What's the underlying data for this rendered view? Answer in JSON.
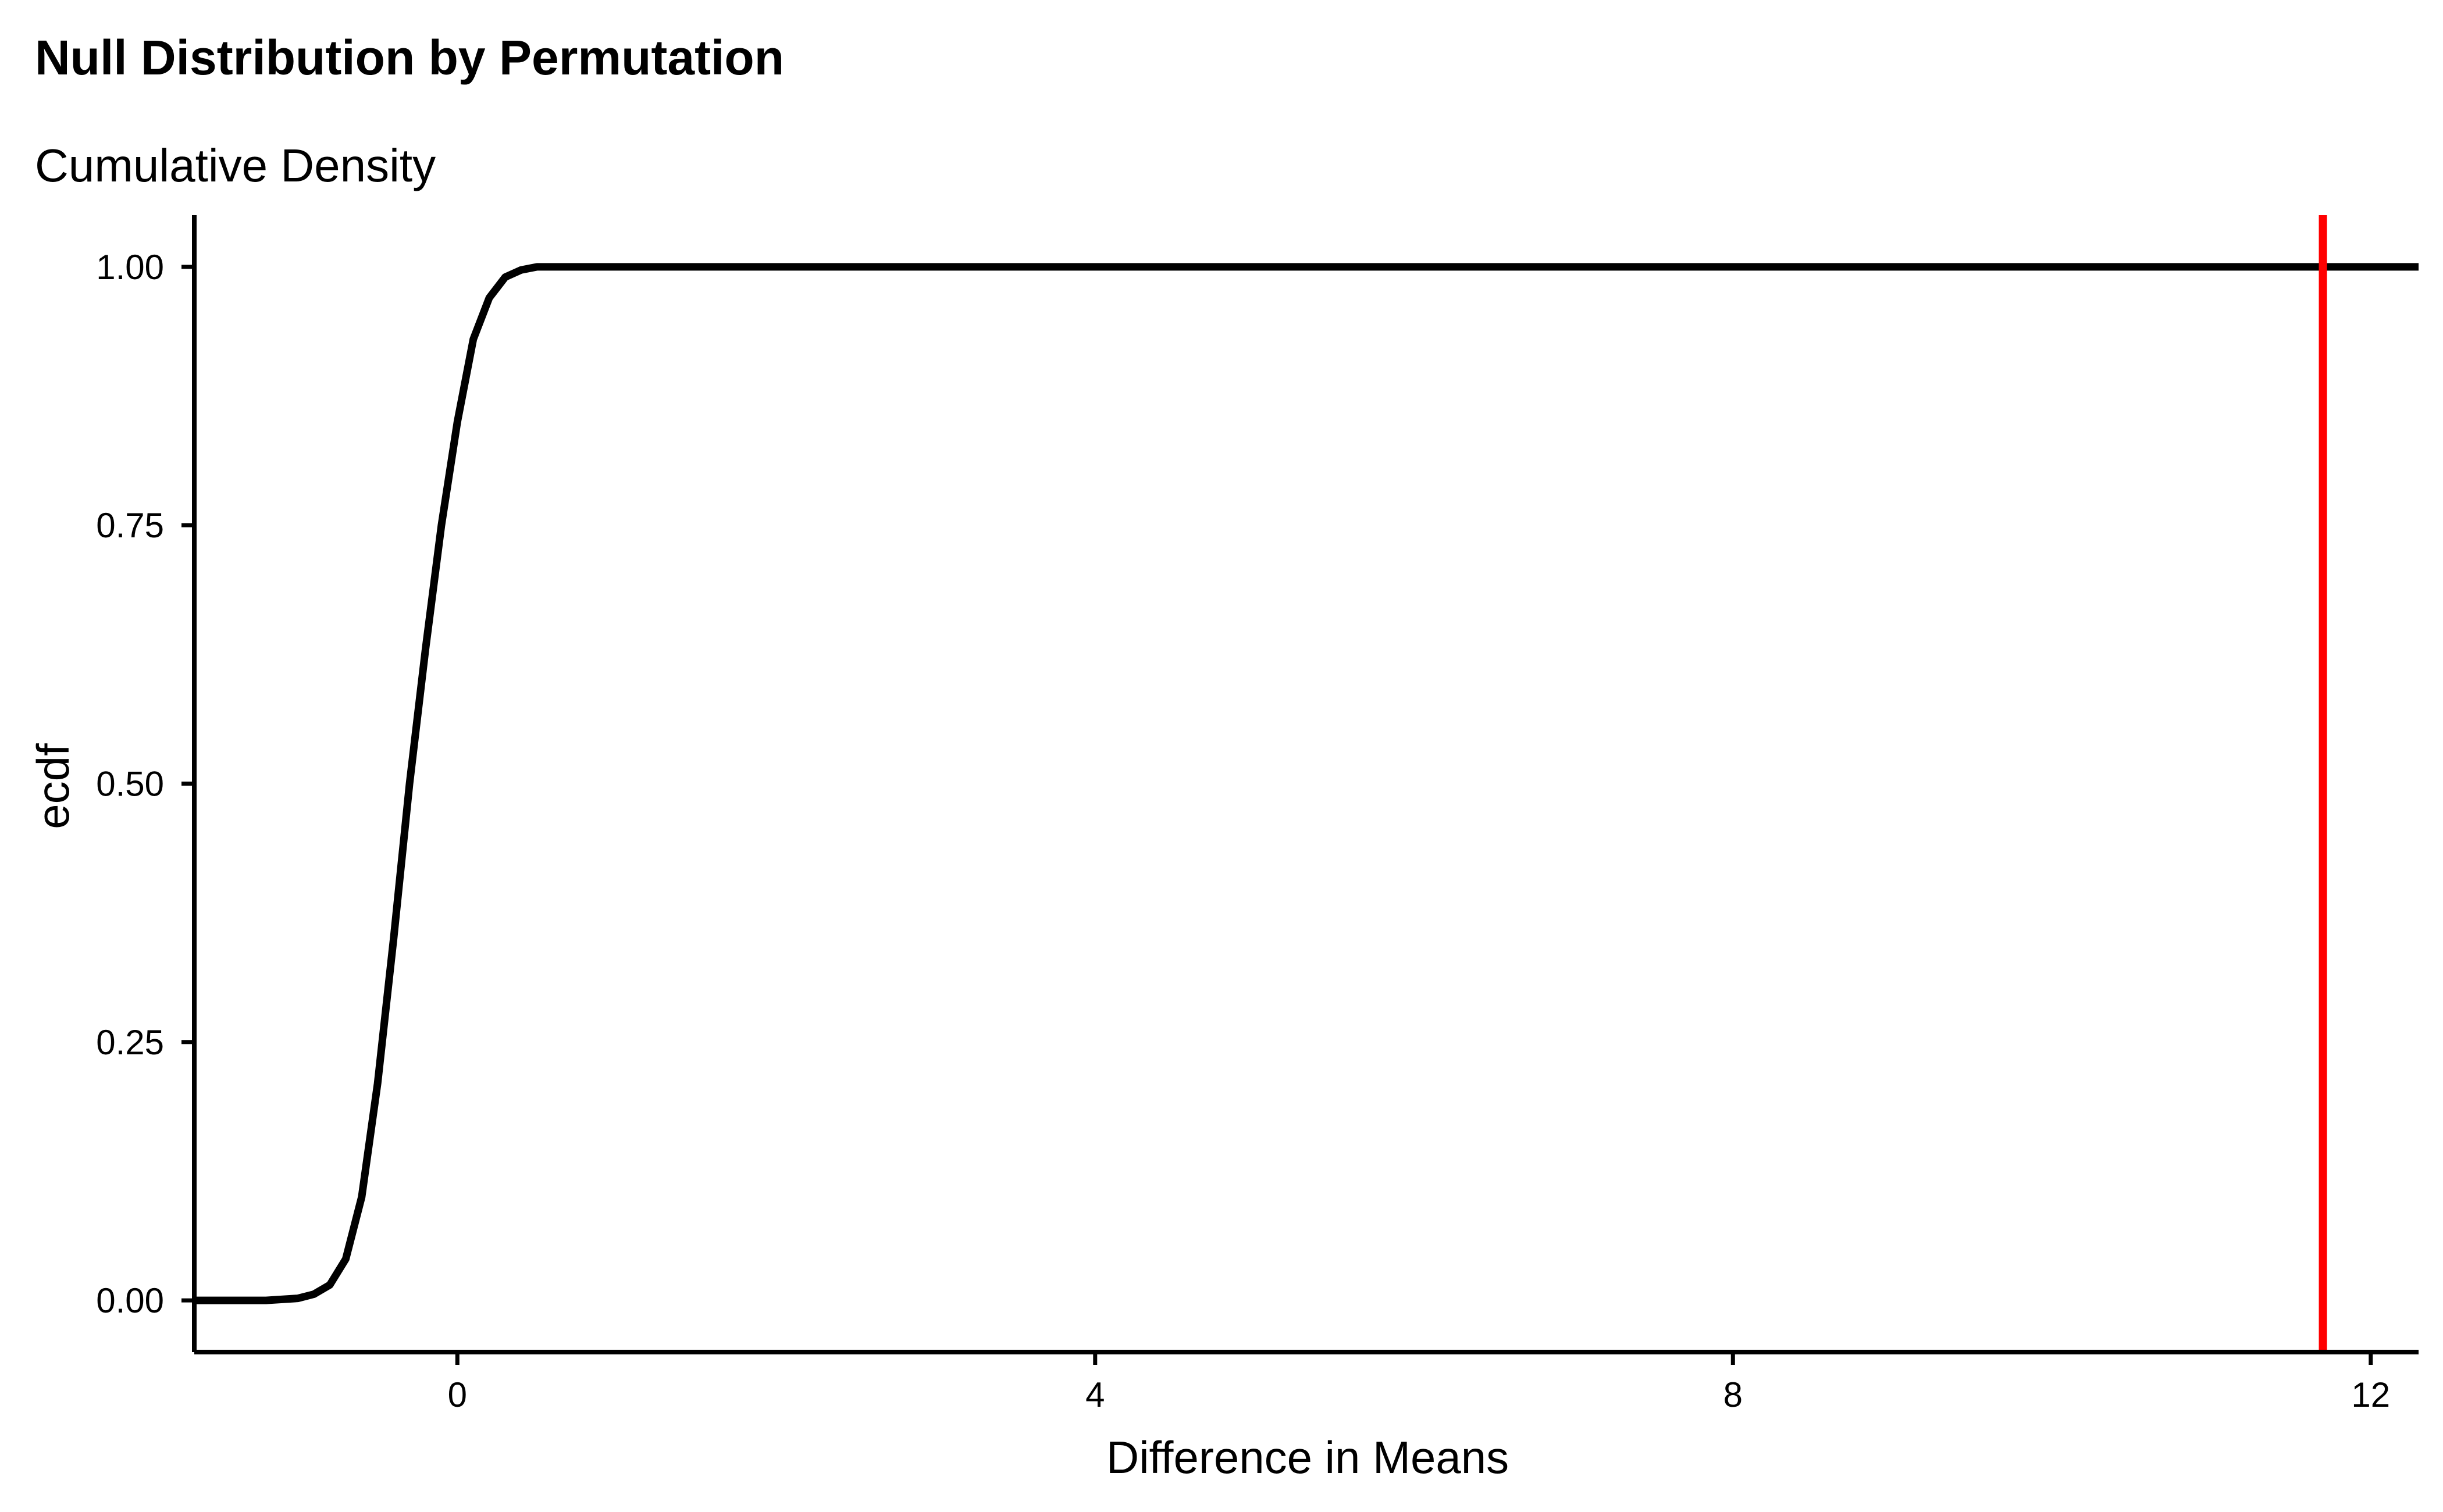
{
  "chart_data": {
    "type": "line",
    "title": "Null Distribution by Permutation",
    "subtitle": "Cumulative Density",
    "xlabel": "Difference in Means",
    "ylabel": "ecdf",
    "xlim": [
      -1.65,
      12.3
    ],
    "ylim": [
      -0.05,
      1.05
    ],
    "x_ticks": [
      0,
      4,
      8,
      12
    ],
    "x_tick_labels": [
      "0",
      "4",
      "8",
      "12"
    ],
    "y_ticks": [
      0,
      0.25,
      0.5,
      0.75,
      1.0
    ],
    "y_tick_labels": [
      "0.00",
      "0.25",
      "0.50",
      "0.75",
      "1.00"
    ],
    "grid": false,
    "series": [
      {
        "color": "#000000",
        "x": [
          -1.65,
          -1.2,
          -1.0,
          -0.9,
          -0.8,
          -0.7,
          -0.6,
          -0.5,
          -0.4,
          -0.3,
          -0.2,
          -0.1,
          0.0,
          0.1,
          0.2,
          0.3,
          0.4,
          0.5,
          0.6,
          0.7,
          0.8,
          1.0,
          12.3
        ],
        "y": [
          0.0,
          0.0,
          0.002,
          0.006,
          0.015,
          0.04,
          0.1,
          0.21,
          0.35,
          0.5,
          0.63,
          0.75,
          0.85,
          0.93,
          0.97,
          0.99,
          0.997,
          1.0,
          1.0,
          1.0,
          1.0,
          1.0,
          1.0
        ]
      }
    ],
    "vlines": [
      {
        "x": 11.7,
        "color": "#ff0000"
      }
    ]
  }
}
